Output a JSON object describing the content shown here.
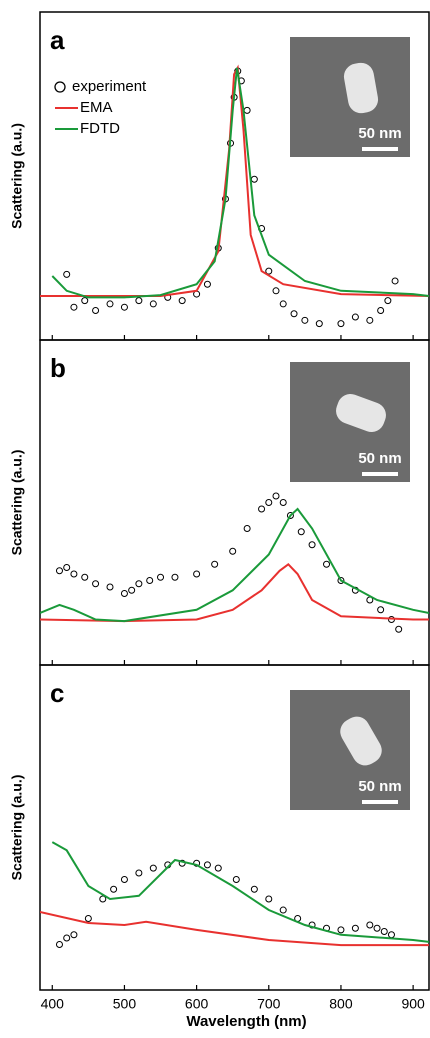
{
  "chart_data": [
    {
      "type": "line",
      "panel_label": "a",
      "ylabel": "Scattering (a.u.)",
      "scale_bar_label": "50 nm",
      "legend": "upper left",
      "xlim": [
        383,
        922
      ],
      "ylim": [
        0,
        1
      ],
      "xticks": [
        400,
        500,
        600,
        700,
        800,
        900
      ],
      "tick_labels": false,
      "series": [
        {
          "name": "experiment",
          "marker": "circle",
          "color": "#000000",
          "x": [
            420,
            430,
            445,
            460,
            480,
            500,
            520,
            540,
            560,
            580,
            600,
            615,
            630,
            640,
            647,
            652,
            657,
            662,
            670,
            680,
            690,
            700,
            710,
            720,
            735,
            750,
            770,
            800,
            820,
            840,
            855,
            865,
            875
          ],
          "values": [
            0.2,
            0.1,
            0.12,
            0.09,
            0.11,
            0.1,
            0.12,
            0.11,
            0.13,
            0.12,
            0.14,
            0.17,
            0.28,
            0.43,
            0.6,
            0.74,
            0.82,
            0.79,
            0.7,
            0.49,
            0.34,
            0.21,
            0.15,
            0.11,
            0.08,
            0.06,
            0.05,
            0.05,
            0.07,
            0.06,
            0.09,
            0.12,
            0.18
          ]
        },
        {
          "name": "EMA",
          "color": "#e8312f",
          "x": [
            383,
            450,
            550,
            600,
            630,
            645,
            652,
            657,
            665,
            675,
            690,
            720,
            800,
            922
          ],
          "values": [
            0.134,
            0.134,
            0.134,
            0.15,
            0.27,
            0.58,
            0.81,
            0.83,
            0.64,
            0.32,
            0.21,
            0.17,
            0.14,
            0.134
          ]
        },
        {
          "name": "FDTD",
          "color": "#1a9a3a",
          "x": [
            400,
            420,
            450,
            500,
            550,
            600,
            625,
            640,
            650,
            656,
            665,
            680,
            700,
            750,
            800,
            900,
            922
          ],
          "values": [
            0.195,
            0.15,
            0.13,
            0.13,
            0.137,
            0.17,
            0.24,
            0.43,
            0.7,
            0.83,
            0.7,
            0.38,
            0.26,
            0.18,
            0.15,
            0.14,
            0.134
          ]
        }
      ]
    },
    {
      "type": "line",
      "panel_label": "b",
      "ylabel": "Scattering (a.u.)",
      "scale_bar_label": "50 nm",
      "xlim": [
        383,
        922
      ],
      "ylim": [
        0,
        1
      ],
      "xticks": [
        400,
        500,
        600,
        700,
        800,
        900
      ],
      "tick_labels": false,
      "series": [
        {
          "marker": "circle",
          "color": "#000000",
          "x": [
            410,
            420,
            430,
            445,
            460,
            480,
            500,
            510,
            520,
            535,
            550,
            570,
            600,
            625,
            650,
            670,
            690,
            700,
            710,
            720,
            730,
            745,
            760,
            780,
            800,
            820,
            840,
            855,
            870,
            880
          ],
          "values": [
            0.29,
            0.3,
            0.28,
            0.27,
            0.25,
            0.24,
            0.22,
            0.23,
            0.25,
            0.26,
            0.27,
            0.27,
            0.28,
            0.31,
            0.35,
            0.42,
            0.48,
            0.5,
            0.52,
            0.5,
            0.46,
            0.41,
            0.37,
            0.31,
            0.26,
            0.23,
            0.2,
            0.17,
            0.14,
            0.11
          ]
        },
        {
          "color": "#e8312f",
          "x": [
            383,
            500,
            600,
            650,
            690,
            715,
            727,
            740,
            760,
            800,
            900,
            922
          ],
          "values": [
            0.14,
            0.135,
            0.14,
            0.17,
            0.23,
            0.29,
            0.31,
            0.28,
            0.2,
            0.15,
            0.14,
            0.14
          ]
        },
        {
          "color": "#1a9a3a",
          "x": [
            383,
            410,
            430,
            460,
            500,
            600,
            650,
            700,
            730,
            740,
            760,
            800,
            850,
            900,
            922
          ],
          "values": [
            0.16,
            0.185,
            0.17,
            0.14,
            0.135,
            0.17,
            0.23,
            0.34,
            0.46,
            0.48,
            0.42,
            0.26,
            0.2,
            0.17,
            0.16
          ]
        }
      ]
    },
    {
      "type": "line",
      "panel_label": "c",
      "ylabel": "Scattering (a.u.)",
      "scale_bar_label": "50 nm",
      "xlabel": "Wavelength (nm)",
      "xlim": [
        383,
        922
      ],
      "ylim": [
        0,
        1
      ],
      "xticks": [
        400,
        500,
        600,
        700,
        800,
        900
      ],
      "tick_labels": true,
      "series": [
        {
          "marker": "circle",
          "color": "#000000",
          "x": [
            410,
            420,
            430,
            450,
            470,
            485,
            500,
            520,
            540,
            560,
            580,
            600,
            615,
            630,
            655,
            680,
            700,
            720,
            740,
            760,
            780,
            800,
            820,
            840,
            850,
            860,
            870
          ],
          "values": [
            0.14,
            0.16,
            0.17,
            0.22,
            0.28,
            0.31,
            0.34,
            0.36,
            0.375,
            0.385,
            0.39,
            0.39,
            0.385,
            0.375,
            0.34,
            0.31,
            0.28,
            0.246,
            0.22,
            0.2,
            0.19,
            0.185,
            0.19,
            0.2,
            0.19,
            0.18,
            0.17
          ]
        },
        {
          "color": "#e8312f",
          "x": [
            383,
            450,
            500,
            530,
            600,
            700,
            800,
            922
          ],
          "values": [
            0.24,
            0.206,
            0.2,
            0.21,
            0.185,
            0.154,
            0.138,
            0.138
          ]
        },
        {
          "color": "#1a9a3a",
          "x": [
            400,
            420,
            450,
            480,
            520,
            570,
            600,
            650,
            700,
            750,
            800,
            900,
            922
          ],
          "values": [
            0.455,
            0.43,
            0.32,
            0.28,
            0.29,
            0.4,
            0.385,
            0.32,
            0.246,
            0.2,
            0.17,
            0.154,
            0.148
          ]
        }
      ]
    }
  ]
}
